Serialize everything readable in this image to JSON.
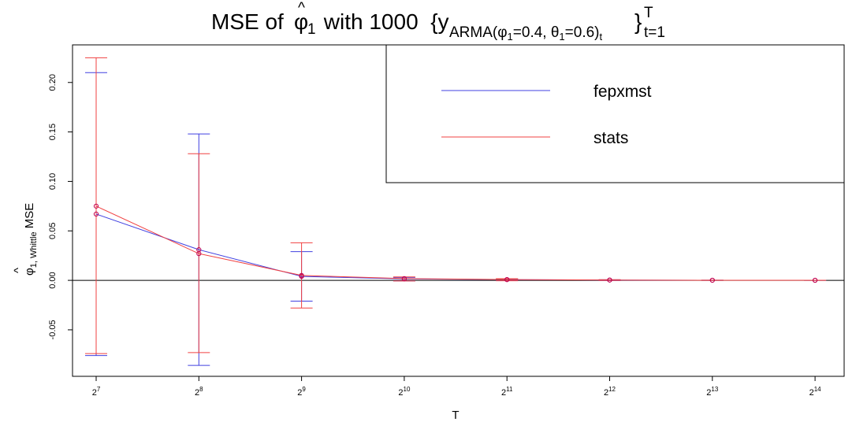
{
  "chart_data": {
    "type": "line",
    "title": {
      "prefix": "MSE of ",
      "phi_symbol": "φ",
      "hat_symbol": "^",
      "phi_subscript": "1",
      "middle": " with 1000  {y",
      "subscript": "ARMA(φ",
      "subscript_phi_index": "1",
      "subscript_rest": "=0.4, θ",
      "subscript_theta_index": "1",
      "subscript_end": "=0.6)",
      "subscript_t": "t",
      "close_brace": "}",
      "superscript": "T",
      "sub_index": "t=1"
    },
    "xlabel": "T",
    "ylabel": {
      "phi_symbol": "φ",
      "hat_symbol": "^",
      "subscript": "1,  Whittle",
      "suffix": " MSE"
    },
    "x_exponents": [
      7,
      8,
      9,
      10,
      11,
      12,
      13,
      14
    ],
    "x_tick_base": "2",
    "x_tick_exponents": [
      "7",
      "8",
      "9",
      "10",
      "11",
      "12",
      "13",
      "14"
    ],
    "ylim": [
      -0.097,
      0.238
    ],
    "y_ticks": [
      -0.05,
      0.0,
      0.05,
      0.1,
      0.15,
      0.2
    ],
    "y_tick_labels": [
      "-0.05",
      "0.00",
      "0.05",
      "0.10",
      "0.15",
      "0.20"
    ],
    "reference_line_y": 0.0,
    "series": [
      {
        "name": "fepxmst",
        "color": "#4040e0",
        "values": [
          0.067,
          0.031,
          0.004,
          0.0015,
          0.0007,
          0.0003,
          0.0001,
          5e-05
        ],
        "error_low": [
          -0.076,
          -0.086,
          -0.021,
          -0.0005,
          -0.0003,
          -0.0001,
          -5e-05,
          -2e-05
        ],
        "error_high": [
          0.21,
          0.148,
          0.029,
          0.003,
          0.0015,
          0.0006,
          0.0002,
          0.0001
        ]
      },
      {
        "name": "stats",
        "color": "#f04040",
        "values": [
          0.075,
          0.027,
          0.005,
          0.0018,
          0.0008,
          0.0003,
          0.0001,
          5e-05
        ],
        "error_low": [
          -0.074,
          -0.073,
          -0.028,
          -0.0006,
          -0.0004,
          -0.0001,
          -5e-05,
          -2e-05
        ],
        "error_high": [
          0.225,
          0.128,
          0.038,
          0.0035,
          0.0017,
          0.0007,
          0.0002,
          0.0001
        ]
      }
    ],
    "point_color": "#c00050",
    "legend": {
      "placement": "top-right",
      "entries": [
        "fepxmst",
        "stats"
      ]
    }
  }
}
